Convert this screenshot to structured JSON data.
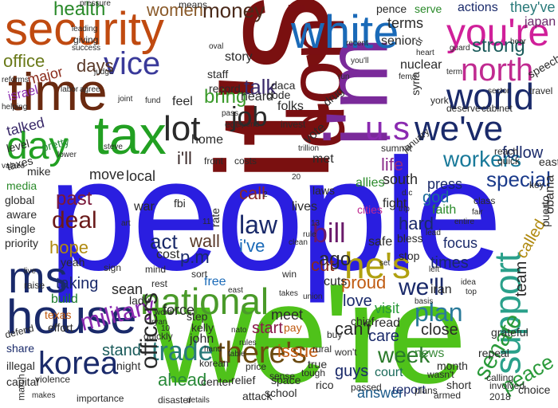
{
  "words": [
    {
      "text": "people",
      "color": "#2a1ee0"
    },
    {
      "text": "we're",
      "color": "#4fc21a"
    },
    {
      "text": "it's",
      "color": "#7a1010"
    },
    {
      "text": "don't",
      "color": "#7a0f12"
    },
    {
      "text": "i'm",
      "color": "#7a2a9a"
    },
    {
      "text": "security",
      "color": "#c04a10"
    },
    {
      "text": "time",
      "color": "#6a2a10"
    },
    {
      "text": "white",
      "color": "#1a6ab8"
    },
    {
      "text": "you're",
      "color": "#d0209a"
    },
    {
      "text": "tax",
      "color": "#22a022"
    },
    {
      "text": "day",
      "color": "#22a022"
    },
    {
      "text": "house",
      "color": "#1a2a6a"
    },
    {
      "text": "ms",
      "color": "#1a2a6a"
    },
    {
      "text": "national",
      "color": "#4a9a2a"
    },
    {
      "text": "he's",
      "color": "#b0a010"
    },
    {
      "text": "support",
      "color": "#2aa08a"
    },
    {
      "text": "world",
      "color": "#1a2a6a"
    },
    {
      "text": "we've",
      "color": "#1a2a6a"
    },
    {
      "text": "north",
      "color": "#c02a90"
    },
    {
      "text": "vice",
      "color": "#3a3a9a"
    },
    {
      "text": "u.s",
      "color": "#8a2ab0"
    },
    {
      "text": "lot",
      "color": "#2a2a2a"
    },
    {
      "text": "job",
      "color": "#2a2a2a"
    },
    {
      "text": "korea",
      "color": "#1a2a6a"
    },
    {
      "text": "there's",
      "color": "#6a4a10"
    },
    {
      "text": "military",
      "color": "#8a2ab0"
    },
    {
      "text": "trade",
      "color": "#2a7a7a"
    },
    {
      "text": "we'll",
      "color": "#1a2a6a"
    },
    {
      "text": "senate",
      "color": "#2a9a3a"
    },
    {
      "text": "plan",
      "color": "#2a7a9a"
    },
    {
      "text": "law",
      "color": "#1a2a6a"
    },
    {
      "text": "bill",
      "color": "#6a1a6a"
    },
    {
      "text": "deal",
      "color": "#6a1a1a"
    },
    {
      "text": "health",
      "color": "#2a8a2a"
    },
    {
      "text": "women",
      "color": "#8a5a2a"
    },
    {
      "text": "money",
      "color": "#4a2a1a"
    },
    {
      "text": "office",
      "color": "#6a7a1a"
    },
    {
      "text": "days",
      "color": "#5a3a2a"
    },
    {
      "text": "talk",
      "color": "#3a2a6a"
    },
    {
      "text": "strong",
      "color": "#1a5a5a"
    },
    {
      "text": "workers",
      "color": "#1a7a9a"
    },
    {
      "text": "special",
      "color": "#1a3a8a"
    },
    {
      "text": "week",
      "color": "#2a7a2a"
    },
    {
      "text": "act",
      "color": "#1a2a6a"
    },
    {
      "text": "past",
      "color": "#7a1a3a"
    },
    {
      "text": "hope",
      "color": "#b08a10"
    },
    {
      "text": "bring",
      "color": "#3a9a2a"
    },
    {
      "text": "can't",
      "color": "#2a2a2a"
    },
    {
      "text": "care",
      "color": "#1a2a6a"
    },
    {
      "text": "follow",
      "color": "#1a2a6a"
    },
    {
      "text": "ago",
      "color": "#2a2a2a"
    },
    {
      "text": "i've",
      "color": "#1a6ab8"
    },
    {
      "text": "i'll",
      "color": "#3a2a2a"
    },
    {
      "text": "wall",
      "color": "#5a3a2a"
    },
    {
      "text": "p.m",
      "color": "#1a2a6a"
    },
    {
      "text": "call",
      "color": "#8a2a2a"
    },
    {
      "text": "cut",
      "color": "#8a2a1a"
    },
    {
      "text": "hard",
      "color": "#1a2a6a"
    },
    {
      "text": "love",
      "color": "#1a2a6a"
    },
    {
      "text": "ahead",
      "color": "#2a8a3a"
    },
    {
      "text": "issue",
      "color": "#c05a10"
    },
    {
      "text": "stand",
      "color": "#1a5a5a"
    },
    {
      "text": "start",
      "color": "#8a1a4a"
    },
    {
      "text": "meet",
      "color": "#2a2a2a"
    },
    {
      "text": "sean",
      "color": "#2a2a2a"
    },
    {
      "text": "force",
      "color": "#2a2a2a"
    },
    {
      "text": "local",
      "color": "#2a2a2a"
    },
    {
      "text": "life",
      "color": "#8a2a8a"
    },
    {
      "text": "god",
      "color": "#1a6a9a"
    },
    {
      "text": "visit",
      "color": "#2a9a3a"
    },
    {
      "text": "close",
      "color": "#2a2a2a"
    },
    {
      "text": "guys",
      "color": "#1a2a6a"
    },
    {
      "text": "news",
      "color": "#3a8a3a"
    },
    {
      "text": "answer",
      "color": "#1a5a8a"
    },
    {
      "text": "taking",
      "color": "#1a2a6a"
    },
    {
      "text": "build",
      "color": "#1a7a2a"
    },
    {
      "text": "report",
      "color": "#1a2a6a"
    },
    {
      "text": "peace",
      "color": "#2a9a3a"
    },
    {
      "text": "team",
      "color": "#2a2a2a"
    },
    {
      "text": "times",
      "color": "#1a2a6a"
    },
    {
      "text": "focus",
      "color": "#1a2a6a"
    },
    {
      "text": "called",
      "color": "#b08a10"
    },
    {
      "text": "proud",
      "color": "#c05a10"
    },
    {
      "text": "court",
      "color": "#1a6a5a"
    },
    {
      "text": "move",
      "color": "#2a2a2a"
    },
    {
      "text": "talked",
      "color": "#3a2a6a"
    },
    {
      "text": "home",
      "color": "#2a2a2a"
    },
    {
      "text": "lives",
      "color": "#2a2a2a"
    },
    {
      "text": "fight",
      "color": "#2a2a2a"
    },
    {
      "text": "south",
      "color": "#2a2a2a"
    },
    {
      "text": "press",
      "color": "#1a2a6a"
    },
    {
      "text": "allies",
      "color": "#2a8a2a"
    },
    {
      "text": "heard",
      "color": "#2a2a2a"
    },
    {
      "text": "story",
      "color": "#2a2a2a"
    },
    {
      "text": "senior",
      "color": "#2a2a2a"
    },
    {
      "text": "nuclear",
      "color": "#2a2a2a"
    },
    {
      "text": "terms",
      "color": "#2a2a2a"
    },
    {
      "text": "pence",
      "color": "#2a2a2a"
    },
    {
      "text": "serve",
      "color": "#2a8a2a"
    },
    {
      "text": "actions",
      "color": "#1a2a6a"
    },
    {
      "text": "they've",
      "color": "#2a7a7a"
    },
    {
      "text": "japan",
      "color": "#6a2a6a"
    },
    {
      "text": "faith",
      "color": "#2a8a2a"
    },
    {
      "text": "syria",
      "color": "#2a2a2a"
    },
    {
      "text": "cuts",
      "color": "#2a2a2a"
    },
    {
      "text": "safe",
      "color": "#2a2a2a"
    },
    {
      "text": "iran",
      "color": "#2a2a2a"
    },
    {
      "text": "war",
      "color": "#2a2a2a"
    },
    {
      "text": "cost",
      "color": "#2a2a2a"
    },
    {
      "text": "pay",
      "color": "#c05a10"
    },
    {
      "text": "true",
      "color": "#2a2a2a"
    },
    {
      "text": "free",
      "color": "#1a6ab8"
    },
    {
      "text": "john",
      "color": "#2a2a2a"
    },
    {
      "text": "step",
      "color": "#2a2a2a"
    },
    {
      "text": "lady",
      "color": "#2a2a2a"
    },
    {
      "text": "kelly",
      "color": "#2a2a2a"
    },
    {
      "text": "israel",
      "color": "#8a2ab0"
    },
    {
      "text": "major",
      "color": "#8a2a1a"
    },
    {
      "text": "pretty",
      "color": "#2a8a3a"
    },
    {
      "text": "level",
      "color": "#2a2a2a"
    },
    {
      "text": "taxes",
      "color": "#2a2a2a"
    },
    {
      "text": "mike",
      "color": "#2a2a2a"
    },
    {
      "text": "yeah",
      "color": "#2a2a2a"
    },
    {
      "text": "texas",
      "color": "#c05a10"
    },
    {
      "text": "effort",
      "color": "#2a2a2a"
    },
    {
      "text": "share",
      "color": "#1a2a6a"
    },
    {
      "text": "illegal",
      "color": "#2a2a2a"
    },
    {
      "text": "capital",
      "color": "#2a2a2a"
    },
    {
      "text": "global",
      "color": "#2a2a2a"
    },
    {
      "text": "aware",
      "color": "#2a2a2a"
    },
    {
      "text": "single",
      "color": "#2a2a2a"
    },
    {
      "text": "media",
      "color": "#2a8a2a"
    },
    {
      "text": "priority",
      "color": "#2a2a2a"
    },
    {
      "text": "raise",
      "color": "#2a2a2a"
    },
    {
      "text": "night",
      "color": "#2a2a2a"
    },
    {
      "text": "officers",
      "color": "#2a2a2a"
    },
    {
      "text": "attack",
      "color": "#2a2a2a"
    },
    {
      "text": "passed",
      "color": "#2a2a2a"
    },
    {
      "text": "month",
      "color": "#2a2a2a"
    },
    {
      "text": "repeal",
      "color": "#2a2a2a"
    },
    {
      "text": "grateful",
      "color": "#2a2a2a"
    },
    {
      "text": "choice",
      "color": "#2a2a2a"
    },
    {
      "text": "obama",
      "color": "#2a2a2a"
    },
    {
      "text": "east",
      "color": "#2a2a2a"
    },
    {
      "text": "speech",
      "color": "#2a2a2a"
    },
    {
      "text": "chief",
      "color": "#2a2a2a"
    },
    {
      "text": "cities",
      "color": "#c02a90"
    },
    {
      "text": "means",
      "color": "#2a2a2a"
    },
    {
      "text": "giving",
      "color": "#2a2a2a"
    },
    {
      "text": "pressure",
      "color": "#2a2a2a"
    },
    {
      "text": "drug",
      "color": "#2a2a2a"
    },
    {
      "text": "vote",
      "color": "#2a2a2a"
    },
    {
      "text": "folks",
      "color": "#2a2a2a"
    },
    {
      "text": "met",
      "color": "#2a2a2a"
    },
    {
      "text": "daca",
      "color": "#2a2a2a"
    },
    {
      "text": "code",
      "color": "#2a2a2a"
    },
    {
      "text": "record",
      "color": "#2a2a2a"
    },
    {
      "text": "feel",
      "color": "#2a2a2a"
    },
    {
      "text": "staff",
      "color": "#2a2a2a"
    },
    {
      "text": "puerto",
      "color": "#2a2a2a"
    },
    {
      "text": "rico",
      "color": "#2a2a2a"
    },
    {
      "text": "space",
      "color": "#2a2a2a"
    },
    {
      "text": "relief",
      "color": "#2a2a2a"
    },
    {
      "text": "school",
      "color": "#2a2a2a"
    },
    {
      "text": "rural",
      "color": "#2a2a2a"
    },
    {
      "text": "buy",
      "color": "#2a2a2a"
    },
    {
      "text": "read",
      "color": "#2a2a2a"
    },
    {
      "text": "short",
      "color": "#2a2a2a"
    },
    {
      "text": "armed",
      "color": "#2a2a2a"
    },
    {
      "text": "plans",
      "color": "#2a2a2a"
    },
    {
      "text": "disaster",
      "color": "#2a2a2a"
    },
    {
      "text": "importance",
      "color": "#2a2a2a"
    },
    {
      "text": "makes",
      "color": "#2a2a2a"
    },
    {
      "text": "defend",
      "color": "#2a2a2a"
    },
    {
      "text": "violence",
      "color": "#2a2a2a"
    },
    {
      "text": "march",
      "color": "#2a2a2a"
    },
    {
      "text": "quickly",
      "color": "#2a2a2a"
    },
    {
      "text": "wasn't",
      "color": "#2a2a2a"
    },
    {
      "text": "won't",
      "color": "#2a2a2a"
    },
    {
      "text": "sense",
      "color": "#2a2a2a"
    },
    {
      "text": "tough",
      "color": "#2a2a2a"
    },
    {
      "text": "price",
      "color": "#2a2a2a"
    },
    {
      "text": "center",
      "color": "#2a2a2a"
    },
    {
      "text": "korean",
      "color": "#2a2a2a"
    },
    {
      "text": "details",
      "color": "#2a2a2a"
    },
    {
      "text": "calling",
      "color": "#2a2a2a"
    },
    {
      "text": "involved",
      "color": "#2a2a2a"
    },
    {
      "text": "basis",
      "color": "#2a2a2a"
    },
    {
      "text": "2018",
      "color": "#2a2a2a"
    },
    {
      "text": "invest",
      "color": "#2a2a2a"
    },
    {
      "text": "bless",
      "color": "#2a2a2a"
    },
    {
      "text": "stop",
      "color": "#2a2a2a"
    },
    {
      "text": "laws",
      "color": "#2a2a2a"
    },
    {
      "text": "edt",
      "color": "#2a2a2a"
    },
    {
      "text": "fbi",
      "color": "#2a2a2a"
    },
    {
      "text": "rate",
      "color": "#2a2a2a"
    },
    {
      "text": "sort",
      "color": "#2a2a2a"
    },
    {
      "text": "mind",
      "color": "#2a2a2a"
    },
    {
      "text": "sign",
      "color": "#2a2a2a"
    },
    {
      "text": "rest",
      "color": "#2a2a2a"
    },
    {
      "text": "win",
      "color": "#2a2a2a"
    },
    {
      "text": "dr",
      "color": "#2a2a2a"
    },
    {
      "text": "york",
      "color": "#2a2a2a"
    },
    {
      "text": "hear",
      "color": "#2a2a2a"
    },
    {
      "text": "travel",
      "color": "#2a2a2a"
    },
    {
      "text": "class",
      "color": "#2a2a2a"
    },
    {
      "text": "reach",
      "color": "#2a2a2a"
    },
    {
      "text": "quick",
      "color": "#2a2a2a"
    },
    {
      "text": "you'll",
      "color": "#2a2a2a"
    },
    {
      "text": "recent",
      "color": "#2a2a2a"
    },
    {
      "text": "success",
      "color": "#2a2a2a"
    },
    {
      "text": "leading",
      "color": "#2a2a2a"
    },
    {
      "text": "judge",
      "color": "#2a2a2a"
    },
    {
      "text": "agree",
      "color": "#2a2a2a"
    },
    {
      "text": "labor",
      "color": "#2a2a2a"
    },
    {
      "text": "reforms",
      "color": "#2a2a2a"
    },
    {
      "text": "helping",
      "color": "#2a2a2a"
    },
    {
      "text": "values",
      "color": "#2a2a2a"
    },
    {
      "text": "lower",
      "color": "#2a2a2a"
    },
    {
      "text": "fund",
      "color": "#2a2a2a"
    },
    {
      "text": "steve",
      "color": "#2a2a2a"
    },
    {
      "text": "joint",
      "color": "#2a2a2a"
    },
    {
      "text": "oval",
      "color": "#2a2a2a"
    },
    {
      "text": "spend",
      "color": "#2a2a2a"
    },
    {
      "text": "pass",
      "color": "#2a2a2a"
    },
    {
      "text": "run",
      "color": "#2a2a2a"
    },
    {
      "text": "deserve",
      "color": "#2a2a2a"
    },
    {
      "text": "cabinet",
      "color": "#2a2a2a"
    },
    {
      "text": "sector",
      "color": "#2a2a2a"
    },
    {
      "text": "fema",
      "color": "#2a2a2a"
    },
    {
      "text": "term",
      "color": "#2a2a2a"
    },
    {
      "text": "heart",
      "color": "#2a2a2a"
    },
    {
      "text": "guard",
      "color": "#2a2a2a"
    },
    {
      "text": "trillion",
      "color": "#2a2a2a"
    },
    {
      "text": "january",
      "color": "#2a2a2a"
    },
    {
      "text": "summit",
      "color": "#2a2a2a"
    },
    {
      "text": "entire",
      "color": "#2a2a2a"
    },
    {
      "text": "fair",
      "color": "#2a2a2a"
    },
    {
      "text": "d.c",
      "color": "#2a2a2a"
    },
    {
      "text": "trip",
      "color": "#2a2a2a"
    },
    {
      "text": "lead",
      "color": "#2a2a2a"
    },
    {
      "text": "left",
      "color": "#2a2a2a"
    },
    {
      "text": "set",
      "color": "#2a2a2a"
    },
    {
      "text": "idea",
      "color": "#2a2a2a"
    },
    {
      "text": "top",
      "color": "#2a2a2a"
    },
    {
      "text": "rules",
      "color": "#2a2a2a"
    },
    {
      "text": "table",
      "color": "#2a2a2a"
    },
    {
      "text": "hand",
      "color": "#2a2a2a"
    },
    {
      "text": "word",
      "color": "#2a2a2a"
    },
    {
      "text": "ryan",
      "color": "#2a2a2a"
    },
    {
      "text": "union",
      "color": "#2a2a2a"
    },
    {
      "text": "takes",
      "color": "#2a2a2a"
    },
    {
      "text": "clean",
      "color": "#2a2a2a"
    },
    {
      "text": "rule",
      "color": "#2a2a2a"
    },
    {
      "text": "key",
      "color": "#2a2a2a"
    },
    {
      "text": "art",
      "color": "#2a2a2a"
    },
    {
      "text": "east",
      "color": "#2a2a2a"
    },
    {
      "text": "nato",
      "color": "#2a2a2a"
    },
    {
      "text": "live",
      "color": "#2a2a2a"
    },
    {
      "text": "front",
      "color": "#2a2a2a"
    },
    {
      "text": "costs",
      "color": "#2a2a2a"
    },
    {
      "text": "20",
      "color": "#2a2a2a"
    },
    {
      "text": "2",
      "color": "#2a2a2a"
    },
    {
      "text": "11",
      "color": "#2a2a2a"
    },
    {
      "text": "10",
      "color": "#2a2a2a"
    },
    {
      "text": "13",
      "color": "#2a2a2a"
    },
    {
      "text": "100",
      "color": "#2a2a2a"
    },
    {
      "text": "3",
      "color": "#2a2a2a"
    }
  ]
}
